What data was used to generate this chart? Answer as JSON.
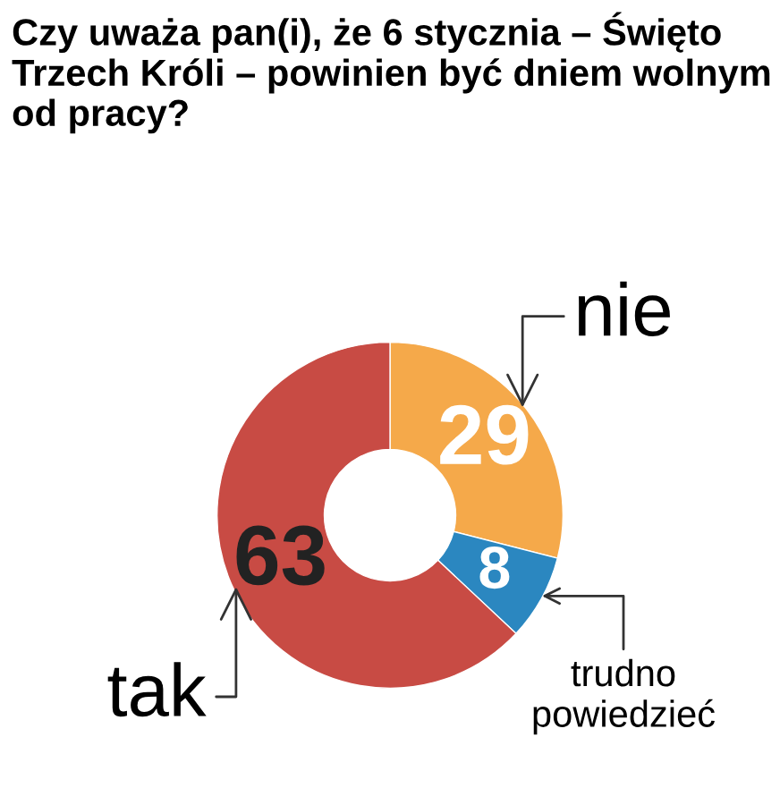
{
  "chart_data": {
    "type": "donut",
    "title": "Czy uważa pan(i), że 6 stycznia – Święto Trzech Króli – powinien być dniem wolnym od pracy?",
    "categories": [
      "nie",
      "trudno powiedzieć",
      "tak"
    ],
    "values": [
      29,
      8,
      63
    ],
    "colors": [
      "#f5a94a",
      "#2b87c0",
      "#c84b44"
    ],
    "data_labels": true,
    "legend": false
  }
}
